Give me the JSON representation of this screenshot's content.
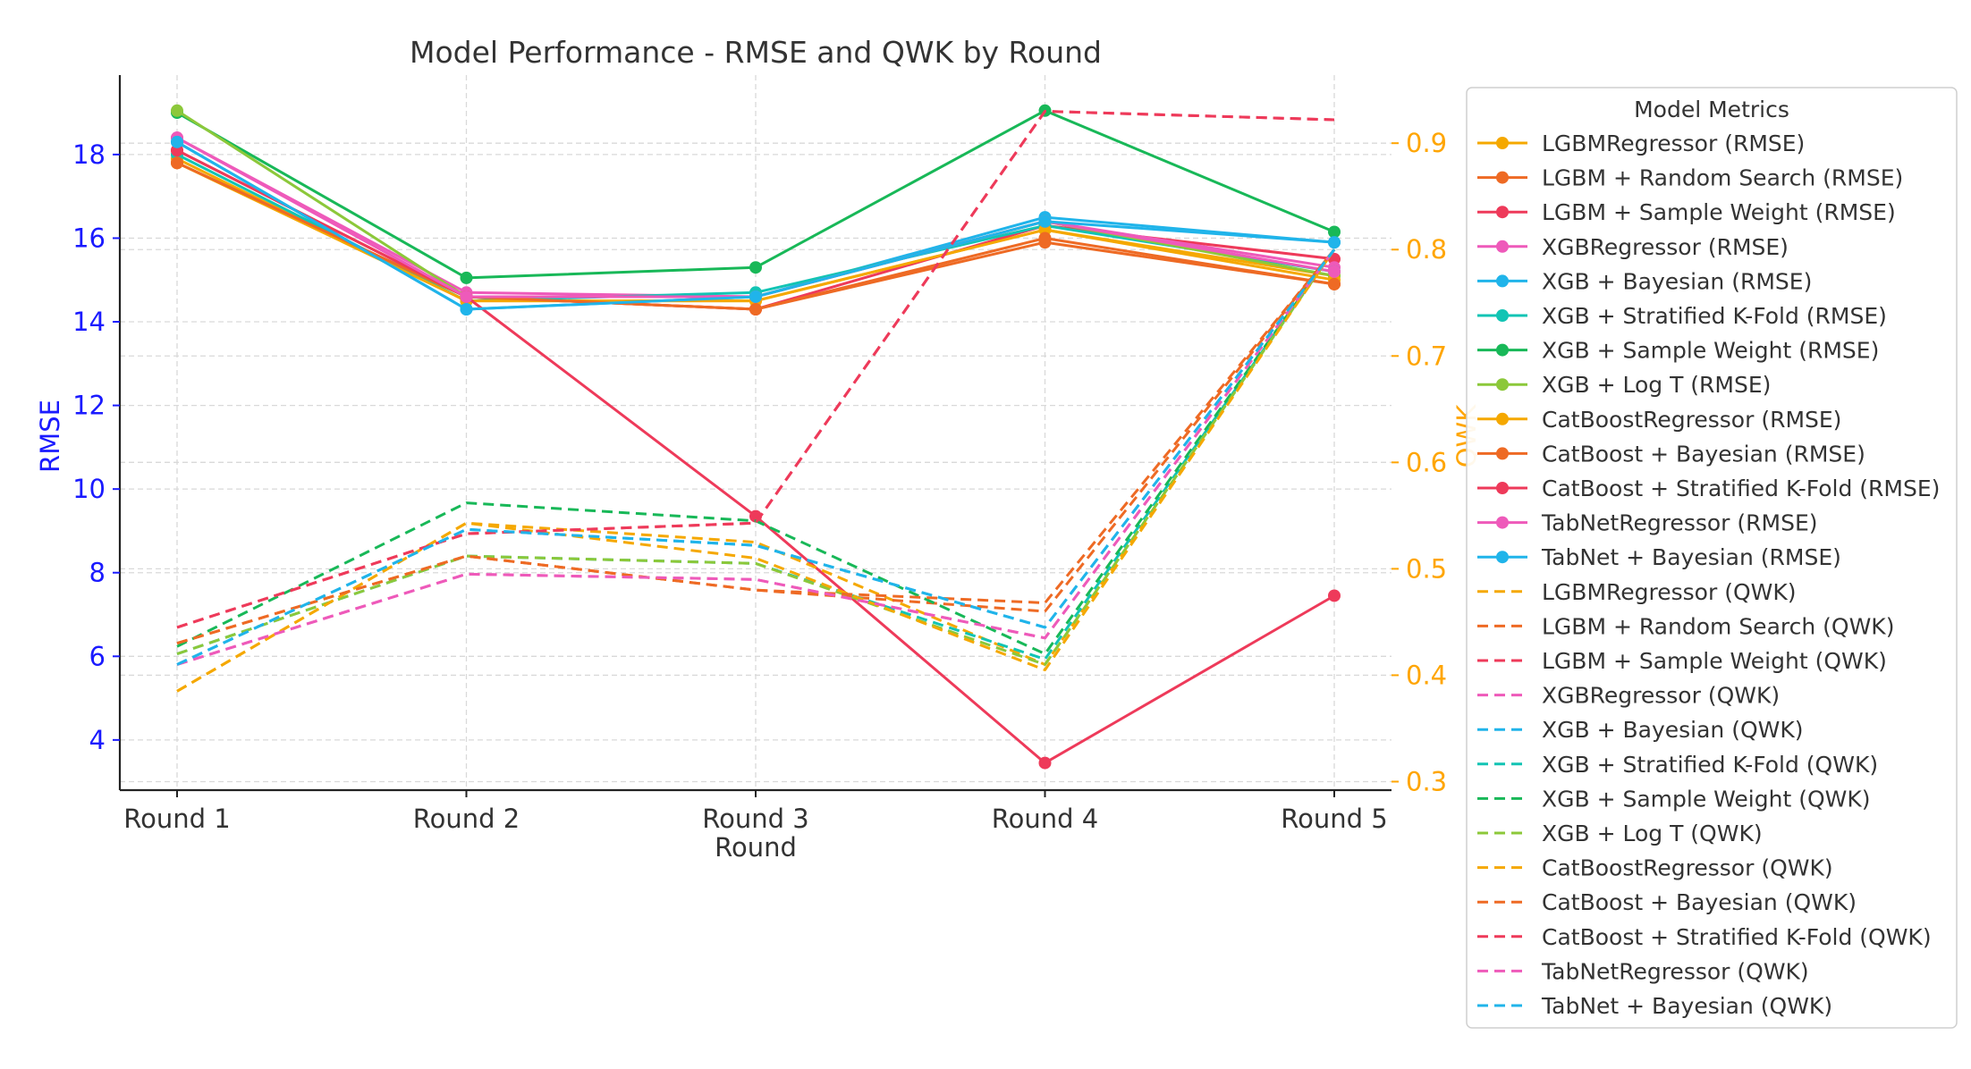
{
  "chart_data": {
    "type": "line",
    "title": "Model Performance - RMSE and QWK by Round",
    "xlabel": "Round",
    "ylabel": "RMSE",
    "y2label": "QWK",
    "categories": [
      "Round 1",
      "Round 2",
      "Round 3",
      "Round 4",
      "Round 5"
    ],
    "ylim": [
      2.8,
      19.9
    ],
    "y2lim": [
      0.292,
      0.964
    ],
    "yticks": [
      4,
      6,
      8,
      10,
      12,
      14,
      16,
      18
    ],
    "y2ticks": [
      0.3,
      0.4,
      0.5,
      0.6,
      0.7,
      0.8,
      0.9
    ],
    "grid": true,
    "legend_title": "Model Metrics",
    "legend_position": "right, outside",
    "colors": {
      "ylabel": "#1a1aff",
      "y2label": "#ffa500",
      "grid": "#d9d9d9"
    },
    "series": [
      {
        "name": "LGBMRegressor (RMSE)",
        "axis": "left",
        "style": "solid",
        "color": "#f5a800",
        "values": [
          17.9,
          14.5,
          14.5,
          16.2,
          15.1
        ]
      },
      {
        "name": "LGBM + Random Search (RMSE)",
        "axis": "left",
        "style": "solid",
        "color": "#ee6a24",
        "values": [
          17.8,
          14.6,
          14.3,
          15.9,
          14.9
        ]
      },
      {
        "name": "LGBM + Sample Weight (RMSE)",
        "axis": "left",
        "style": "solid",
        "color": "#ee3a5a",
        "values": [
          18.1,
          14.6,
          14.3,
          16.3,
          15.5
        ]
      },
      {
        "name": "XGBRegressor (RMSE)",
        "axis": "left",
        "style": "solid",
        "color": "#ee5aba",
        "values": [
          18.4,
          14.7,
          14.6,
          16.4,
          15.3
        ]
      },
      {
        "name": "XGB + Bayesian (RMSE)",
        "axis": "left",
        "style": "solid",
        "color": "#20b4ea",
        "values": [
          18.3,
          14.3,
          14.6,
          16.5,
          15.9
        ]
      },
      {
        "name": "XGB + Stratified K-Fold (RMSE)",
        "axis": "left",
        "style": "solid",
        "color": "#12c4b4",
        "values": [
          18.0,
          14.5,
          14.7,
          16.3,
          15.2
        ]
      },
      {
        "name": "XGB + Sample Weight (RMSE)",
        "axis": "left",
        "style": "solid",
        "color": "#18b858",
        "values": [
          19.0,
          15.05,
          15.3,
          19.05,
          16.15
        ]
      },
      {
        "name": "XGB + Log T (RMSE)",
        "axis": "left",
        "style": "solid",
        "color": "#8cc83a",
        "values": [
          19.05,
          14.6,
          14.6,
          16.4,
          15.1
        ]
      },
      {
        "name": "CatBoostRegressor (RMSE)",
        "axis": "left",
        "style": "solid",
        "color": "#f5a800",
        "values": [
          17.8,
          14.5,
          14.5,
          16.2,
          15.0
        ]
      },
      {
        "name": "CatBoost + Bayesian (RMSE)",
        "axis": "left",
        "style": "solid",
        "color": "#ee6a24",
        "values": [
          17.8,
          14.6,
          14.3,
          16.0,
          14.9
        ]
      },
      {
        "name": "CatBoost + Stratified K-Fold (RMSE)",
        "axis": "left",
        "style": "solid",
        "color": "#ee3a5a",
        "values": [
          18.1,
          14.6,
          9.35,
          3.45,
          7.45
        ]
      },
      {
        "name": "TabNetRegressor (RMSE)",
        "axis": "left",
        "style": "solid",
        "color": "#ee5aba",
        "values": [
          18.4,
          14.6,
          14.6,
          16.4,
          15.2
        ]
      },
      {
        "name": "TabNet + Bayesian (RMSE)",
        "axis": "left",
        "style": "solid",
        "color": "#20b4ea",
        "values": [
          18.3,
          14.3,
          14.6,
          16.4,
          15.9
        ]
      },
      {
        "name": "LGBMRegressor (QWK)",
        "axis": "right",
        "style": "dashed",
        "color": "#f5a800",
        "values": [
          0.385,
          0.543,
          0.525,
          0.41,
          0.8
        ]
      },
      {
        "name": "LGBM + Random Search (QWK)",
        "axis": "right",
        "style": "dashed",
        "color": "#ee6a24",
        "values": [
          0.43,
          0.512,
          0.48,
          0.46,
          0.8
        ]
      },
      {
        "name": "LGBM + Sample Weight (QWK)",
        "axis": "right",
        "style": "dashed",
        "color": "#ee3a5a",
        "values": [
          0.445,
          0.533,
          0.543,
          0.93,
          0.922
        ]
      },
      {
        "name": "XGBRegressor (QWK)",
        "axis": "right",
        "style": "dashed",
        "color": "#ee5aba",
        "values": [
          0.41,
          0.495,
          0.49,
          0.435,
          0.8
        ]
      },
      {
        "name": "XGB + Bayesian (QWK)",
        "axis": "right",
        "style": "dashed",
        "color": "#20b4ea",
        "values": [
          0.41,
          0.537,
          0.522,
          0.445,
          0.8
        ]
      },
      {
        "name": "XGB + Stratified K-Fold (QWK)",
        "axis": "right",
        "style": "dashed",
        "color": "#12c4b4",
        "values": [
          0.42,
          0.512,
          0.505,
          0.415,
          0.8
        ]
      },
      {
        "name": "XGB + Sample Weight (QWK)",
        "axis": "right",
        "style": "dashed",
        "color": "#18b858",
        "values": [
          0.427,
          0.562,
          0.545,
          0.42,
          0.8
        ]
      },
      {
        "name": "XGB + Log T (QWK)",
        "axis": "right",
        "style": "dashed",
        "color": "#8cc83a",
        "values": [
          0.42,
          0.512,
          0.505,
          0.41,
          0.8
        ]
      },
      {
        "name": "CatBoostRegressor (QWK)",
        "axis": "right",
        "style": "dashed",
        "color": "#f5a800",
        "values": [
          0.385,
          0.543,
          0.51,
          0.405,
          0.8
        ]
      },
      {
        "name": "CatBoost + Bayesian (QWK)",
        "axis": "right",
        "style": "dashed",
        "color": "#ee6a24",
        "values": [
          0.43,
          0.512,
          0.48,
          0.468,
          0.8
        ]
      },
      {
        "name": "CatBoost + Stratified K-Fold (QWK)",
        "axis": "right",
        "style": "dashed",
        "color": "#ee3a5a",
        "values": [
          0.445,
          0.533,
          0.543,
          0.93,
          0.922
        ]
      },
      {
        "name": "TabNetRegressor (QWK)",
        "axis": "right",
        "style": "dashed",
        "color": "#ee5aba",
        "values": [
          0.41,
          0.495,
          0.49,
          0.435,
          0.8
        ]
      },
      {
        "name": "TabNet + Bayesian (QWK)",
        "axis": "right",
        "style": "dashed",
        "color": "#20b4ea",
        "values": [
          0.41,
          0.537,
          0.522,
          0.445,
          0.8
        ]
      }
    ]
  }
}
